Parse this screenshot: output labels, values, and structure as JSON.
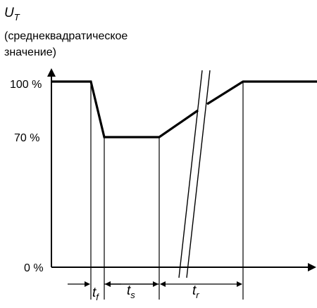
{
  "y_axis": {
    "symbol": "U",
    "subscript": "T",
    "caption_line1": "(среднеквадратическое",
    "caption_line2": "значение)"
  },
  "levels": {
    "top": "100 %",
    "mid": "70 %",
    "zero": "0 %"
  },
  "intervals": [
    {
      "symbol": "t",
      "subscript": "f"
    },
    {
      "symbol": "t",
      "subscript": "s"
    },
    {
      "symbol": "t",
      "subscript": "r"
    }
  ]
}
